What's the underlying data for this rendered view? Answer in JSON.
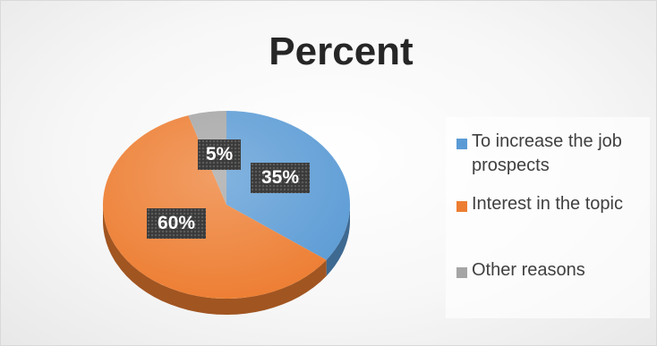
{
  "chart_data": {
    "type": "pie",
    "title": "Percent",
    "categories": [
      "To increase the job prospects",
      "Interest in the topic",
      "Other reasons"
    ],
    "values": [
      35,
      60,
      5
    ],
    "data_labels": [
      "35%",
      "60%",
      "5%"
    ],
    "colors": [
      "#5b9bd5",
      "#ed7d31",
      "#a5a5a5"
    ],
    "legend_position": "right",
    "style": "3d"
  }
}
